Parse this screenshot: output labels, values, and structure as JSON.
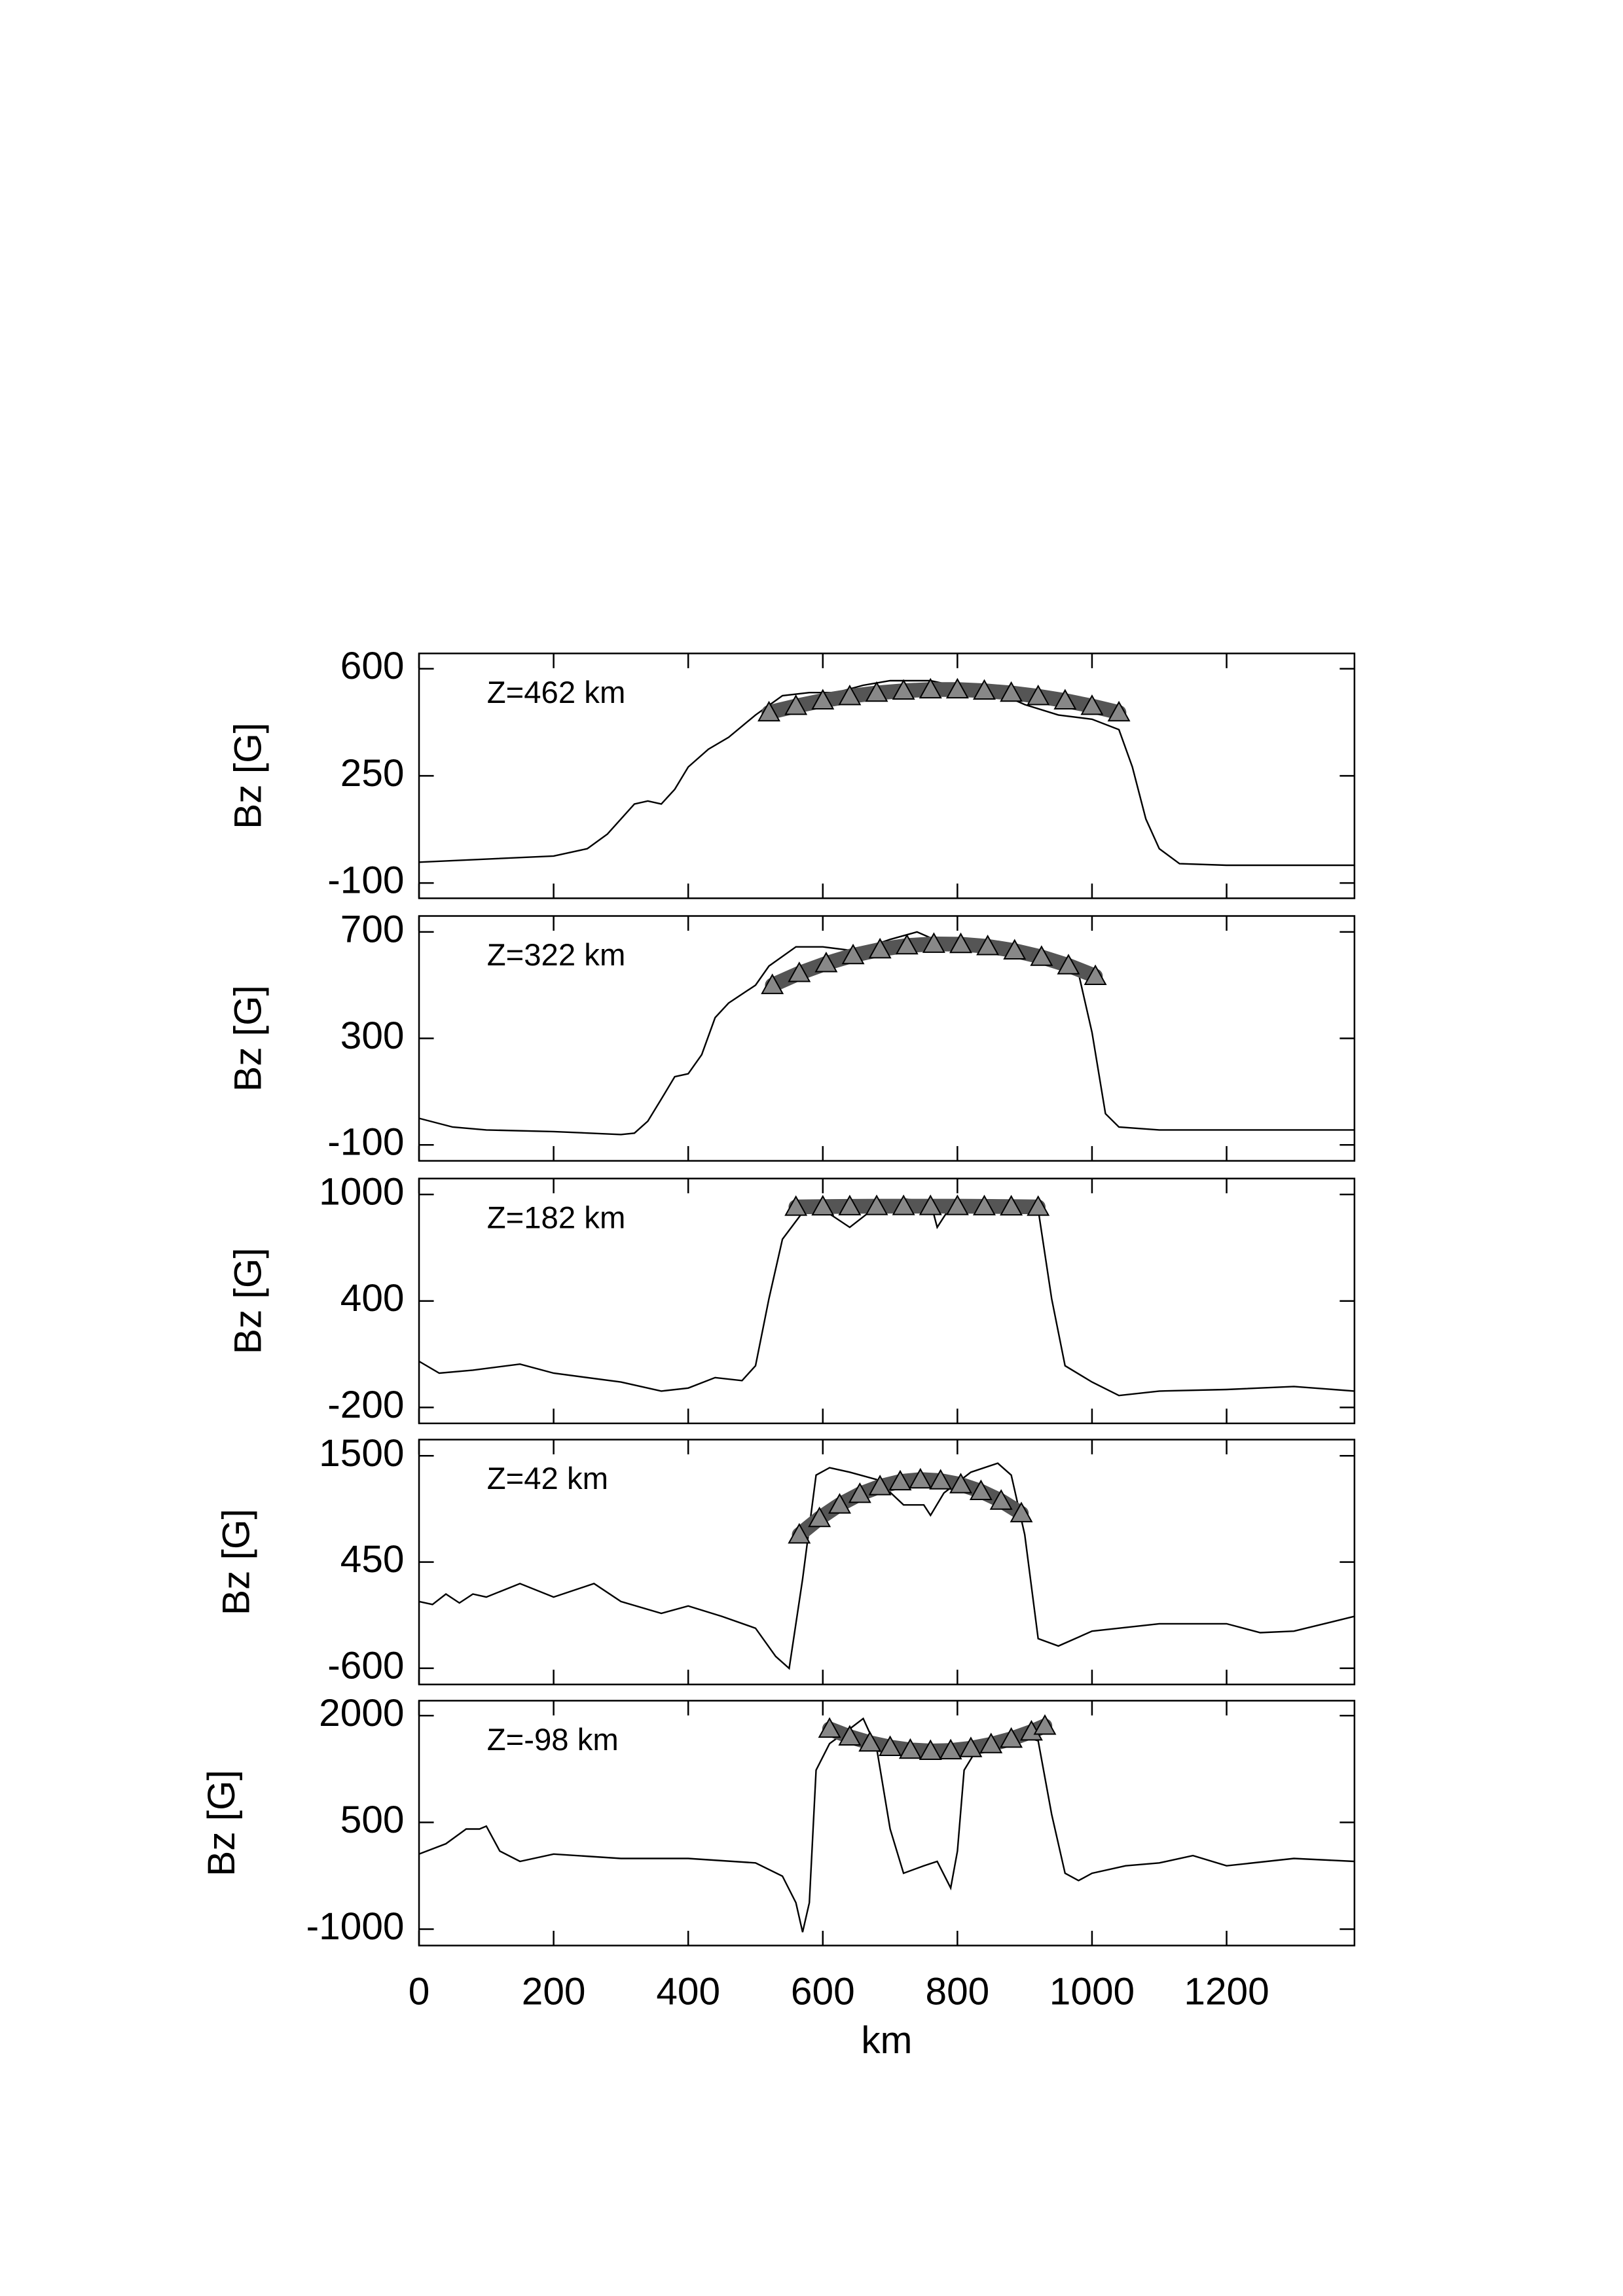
{
  "chart_data": [
    {
      "type": "line",
      "annotation": "Z=462 km",
      "ylabel": "Bz [G]",
      "xlim": [
        0,
        1390
      ],
      "ylim": [
        -150,
        650
      ],
      "yticks": [
        -100,
        250,
        600
      ],
      "x": [
        0,
        200,
        250,
        280,
        320,
        340,
        360,
        380,
        400,
        430,
        460,
        500,
        540,
        580,
        620,
        660,
        700,
        760,
        800,
        860,
        900,
        950,
        1000,
        1040,
        1060,
        1080,
        1100,
        1130,
        1200,
        1390
      ],
      "series": [
        {
          "color": "#000000",
          "values": [
            -32,
            -12,
            12,
            60,
            158,
            168,
            158,
            206,
            279,
            337,
            376,
            449,
            512,
            522,
            522,
            546,
            561,
            561,
            542,
            522,
            483,
            449,
            435,
            401,
            279,
            109,
            12,
            -37,
            -42,
            -42
          ]
        },
        {
          "color": "#000000",
          "marker": "triangle",
          "x": [
            520,
            560,
            600,
            640,
            680,
            720,
            760,
            800,
            840,
            880,
            920,
            960,
            1000,
            1040
          ],
          "values": [
            457,
            478,
            496,
            510,
            521,
            528,
            532,
            532,
            528,
            521,
            510,
            496,
            478,
            457
          ]
        }
      ]
    },
    {
      "type": "line",
      "annotation": "Z=322 km",
      "ylabel": "Bz [G]",
      "xlim": [
        0,
        1390
      ],
      "ylim": [
        -160,
        760
      ],
      "yticks": [
        -100,
        300,
        700
      ],
      "x": [
        0,
        50,
        100,
        200,
        300,
        320,
        340,
        360,
        380,
        400,
        420,
        440,
        460,
        500,
        520,
        560,
        600,
        650,
        700,
        740,
        780,
        820,
        860,
        900,
        940,
        980,
        1000,
        1020,
        1040,
        1100,
        1200,
        1390
      ],
      "series": [
        {
          "color": "#000000",
          "values": [
            0,
            -33,
            -44,
            -50,
            -61,
            -56,
            -11,
            72,
            156,
            167,
            239,
            378,
            433,
            500,
            572,
            644,
            644,
            628,
            672,
            700,
            656,
            656,
            628,
            600,
            589,
            544,
            322,
            17,
            -33,
            -44,
            -44,
            -44
          ]
        },
        {
          "color": "#000000",
          "marker": "triangle",
          "x": [
            525,
            565,
            605,
            645,
            685,
            725,
            765,
            805,
            845,
            885,
            925,
            965,
            1005
          ],
          "values": [
            500,
            545,
            582,
            612,
            634,
            649,
            655,
            654,
            646,
            630,
            606,
            574,
            534
          ]
        }
      ]
    },
    {
      "type": "line",
      "annotation": "Z=182 km",
      "ylabel": "Bz [G]",
      "xlim": [
        0,
        1390
      ],
      "ylim": [
        -290,
        1090
      ],
      "yticks": [
        -200,
        400,
        1000
      ],
      "x": [
        0,
        30,
        80,
        150,
        200,
        300,
        360,
        400,
        440,
        480,
        500,
        520,
        540,
        570,
        600,
        640,
        680,
        720,
        760,
        770,
        790,
        840,
        900,
        920,
        940,
        960,
        1000,
        1040,
        1100,
        1200,
        1300,
        1390
      ],
      "series": [
        {
          "color": "#000000",
          "values": [
            60,
            -7,
            10,
            44,
            -7,
            -57,
            -108,
            -91,
            -32,
            -49,
            35,
            413,
            748,
            899,
            916,
            815,
            933,
            975,
            958,
            815,
            933,
            966,
            958,
            916,
            413,
            35,
            -57,
            -133,
            -108,
            -99,
            -82,
            -108
          ]
        },
        {
          "color": "#000000",
          "marker": "triangle",
          "x": [
            560,
            600,
            640,
            680,
            720,
            760,
            800,
            840,
            880,
            920
          ],
          "values": [
            930,
            932,
            933,
            934,
            934,
            934,
            934,
            933,
            932,
            930
          ]
        }
      ]
    },
    {
      "type": "line",
      "annotation": "Z=42 km",
      "ylabel": "Bz [G]",
      "xlim": [
        0,
        1390
      ],
      "ylim": [
        -760,
        1660
      ],
      "yticks": [
        -600,
        450,
        1500
      ],
      "x": [
        0,
        20,
        40,
        60,
        80,
        100,
        150,
        200,
        260,
        300,
        360,
        400,
        450,
        500,
        530,
        550,
        570,
        590,
        610,
        640,
        680,
        720,
        750,
        760,
        780,
        820,
        860,
        880,
        900,
        920,
        950,
        1000,
        1100,
        1200,
        1250,
        1300,
        1390
      ],
      "series": [
        {
          "color": "#000000",
          "values": [
            60,
            31,
            134,
            46,
            134,
            104,
            237,
            104,
            237,
            60,
            -57,
            16,
            -87,
            -204,
            -483,
            -601,
            281,
            1309,
            1382,
            1338,
            1265,
            1015,
            1015,
            912,
            1133,
            1338,
            1427,
            1309,
            721,
            -307,
            -380,
            -233,
            -160,
            -160,
            -248,
            -233,
            -87
          ]
        },
        {
          "color": "#000000",
          "marker": "triangle",
          "x": [
            565,
            595,
            625,
            655,
            685,
            715,
            745,
            775,
            805,
            835,
            865,
            895
          ],
          "values": [
            721,
            883,
            1017,
            1122,
            1198,
            1246,
            1265,
            1255,
            1217,
            1150,
            1055,
            931
          ]
        }
      ]
    },
    {
      "type": "line",
      "annotation": "Z=-98 km",
      "ylabel": "Bz [G]",
      "xlabel": "km",
      "xlim": [
        0,
        1390
      ],
      "ylim": [
        -1230,
        2210
      ],
      "yticks": [
        -1000,
        500,
        2000
      ],
      "xticks": [
        0,
        200,
        400,
        600,
        800,
        1000,
        1200
      ],
      "x": [
        0,
        40,
        70,
        90,
        100,
        120,
        150,
        200,
        300,
        400,
        500,
        540,
        560,
        570,
        580,
        590,
        610,
        640,
        660,
        680,
        700,
        720,
        750,
        770,
        790,
        800,
        810,
        830,
        880,
        920,
        940,
        960,
        980,
        1000,
        1050,
        1100,
        1150,
        1200,
        1300,
        1390
      ],
      "series": [
        {
          "color": "#000000",
          "values": [
            55,
            200,
            407,
            407,
            448,
            97,
            -48,
            55,
            -7,
            -7,
            -69,
            -255,
            -628,
            -1042,
            -628,
            1234,
            1607,
            1814,
            1959,
            1545,
            407,
            -214,
            -110,
            -48,
            -421,
            97,
            1234,
            1545,
            1752,
            1648,
            614,
            -214,
            -317,
            -214,
            -110,
            -69,
            34,
            -110,
            -7,
            -48
          ]
        },
        {
          "color": "#000000",
          "marker": "triangle",
          "x": [
            610,
            640,
            670,
            700,
            730,
            760,
            790,
            820,
            850,
            880,
            910,
            930
          ],
          "values": [
            1814,
            1705,
            1620,
            1558,
            1519,
            1503,
            1511,
            1542,
            1597,
            1674,
            1775,
            1856
          ]
        }
      ]
    }
  ]
}
